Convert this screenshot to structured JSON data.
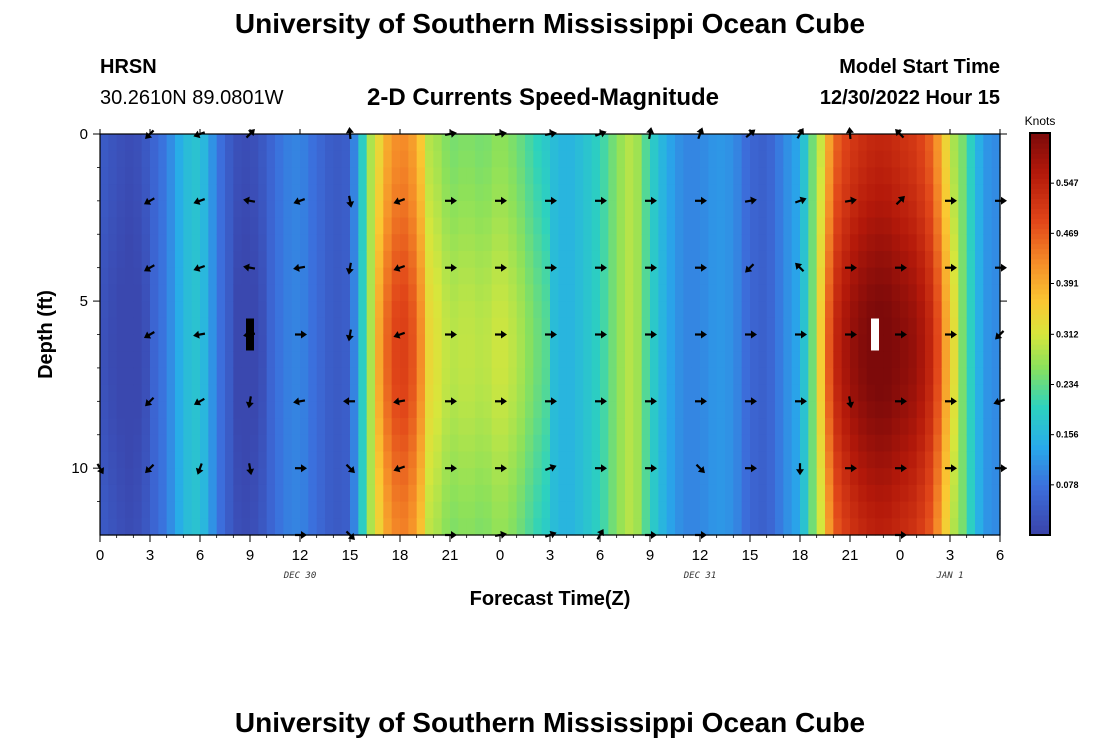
{
  "header": {
    "title": "University of Southern Mississippi Ocean Cube",
    "station": "HRSN",
    "coords": "30.2610N  89.0801W",
    "subtitle": "2-D Currents Speed-Magnitude",
    "model_label": "Model Start Time",
    "model_value": "12/30/2022 Hour 15"
  },
  "footer": {
    "title": "University of Southern Mississippi Ocean Cube"
  },
  "chart_data": {
    "type": "heatmap",
    "title": "2-D Currents Speed-Magnitude",
    "xlabel": "Forecast Time(Z)",
    "ylabel": "Depth (ft)",
    "x_hours_range": [
      0,
      54
    ],
    "y_range_ft": [
      0,
      12
    ],
    "y_inverted": true,
    "x_tick_hours": [
      0,
      3,
      6,
      9,
      12,
      15,
      18,
      21,
      24,
      27,
      30,
      33,
      36,
      39,
      42,
      45,
      48,
      51,
      54
    ],
    "x_tick_labels": [
      "0",
      "3",
      "6",
      "9",
      "12",
      "15",
      "18",
      "21",
      "0",
      "3",
      "6",
      "9",
      "12",
      "15",
      "18",
      "21",
      "0",
      "3",
      "6"
    ],
    "y_ticks": [
      0,
      5,
      10
    ],
    "y_tick_labels": [
      "0",
      "5",
      "10"
    ],
    "date_labels": [
      {
        "hour": 12,
        "text": "DEC 30"
      },
      {
        "hour": 36,
        "text": "DEC 31"
      },
      {
        "hour": 51,
        "text": "JAN 1"
      }
    ],
    "colorbar": {
      "unit": "Knots",
      "min": 0.0,
      "max": 0.625,
      "ticks": [
        0.078,
        0.156,
        0.234,
        0.312,
        0.391,
        0.469,
        0.547
      ],
      "tick_labels": [
        "0.078",
        "0.156",
        "0.234",
        "0.312",
        "0.391",
        "0.469",
        "0.547"
      ]
    },
    "speed_profile_by_hour": {
      "hours": [
        0,
        0.5,
        1,
        2,
        3,
        4,
        5,
        6,
        7,
        8,
        9,
        10,
        11,
        12,
        13,
        14,
        15,
        16,
        17,
        18,
        19,
        20,
        21,
        22,
        23,
        24,
        25,
        26,
        27,
        28,
        29,
        30,
        31,
        32,
        33,
        34,
        35,
        36,
        37,
        38,
        39,
        40,
        41,
        42,
        43,
        44,
        45,
        46,
        47,
        48,
        49,
        50,
        51,
        52,
        53,
        54
      ],
      "values": [
        0.05,
        0.04,
        0.03,
        0.02,
        0.05,
        0.09,
        0.16,
        0.18,
        0.09,
        0.03,
        0.02,
        0.05,
        0.09,
        0.1,
        0.07,
        0.04,
        0.05,
        0.24,
        0.42,
        0.48,
        0.44,
        0.28,
        0.24,
        0.25,
        0.24,
        0.26,
        0.24,
        0.2,
        0.17,
        0.15,
        0.17,
        0.2,
        0.26,
        0.3,
        0.2,
        0.14,
        0.1,
        0.1,
        0.12,
        0.11,
        0.06,
        0.05,
        0.1,
        0.14,
        0.28,
        0.5,
        0.56,
        0.59,
        0.6,
        0.58,
        0.56,
        0.5,
        0.34,
        0.22,
        0.12,
        0.1
      ]
    },
    "vector_rows_ft": [
      0,
      2,
      4,
      6,
      8,
      10,
      12
    ],
    "vector_hours": [
      0,
      3,
      6,
      9,
      12,
      15,
      18,
      21,
      24,
      27,
      30,
      33,
      36,
      39,
      42,
      45,
      48,
      51,
      54
    ],
    "vector_angles_deg": [
      [
        null,
        225,
        200,
        45,
        null,
        95,
        null,
        10,
        10,
        10,
        20,
        80,
        70,
        40,
        60,
        95,
        135,
        null,
        null
      ],
      [
        null,
        210,
        200,
        170,
        200,
        280,
        200,
        0,
        0,
        0,
        0,
        0,
        0,
        10,
        20,
        10,
        45,
        0,
        0
      ],
      [
        null,
        210,
        200,
        170,
        190,
        260,
        200,
        0,
        0,
        0,
        0,
        0,
        0,
        225,
        135,
        0,
        0,
        0,
        0
      ],
      [
        null,
        210,
        190,
        190,
        0,
        260,
        200,
        0,
        0,
        0,
        0,
        0,
        0,
        0,
        0,
        0,
        0,
        0,
        225
      ],
      [
        null,
        225,
        210,
        260,
        190,
        180,
        190,
        0,
        0,
        0,
        0,
        0,
        0,
        0,
        0,
        280,
        0,
        0,
        200
      ],
      [
        300,
        225,
        250,
        280,
        0,
        315,
        200,
        0,
        0,
        20,
        0,
        0,
        315,
        0,
        270,
        0,
        0,
        0,
        0
      ],
      [
        null,
        null,
        null,
        null,
        0,
        315,
        null,
        0,
        10,
        20,
        60,
        0,
        0,
        null,
        null,
        null,
        0,
        null,
        null
      ]
    ],
    "markers": [
      {
        "hour": 9,
        "depth_ft": 6.0,
        "color": "#000000"
      },
      {
        "hour": 46.5,
        "depth_ft": 6.0,
        "color": "#ffffff"
      }
    ]
  }
}
